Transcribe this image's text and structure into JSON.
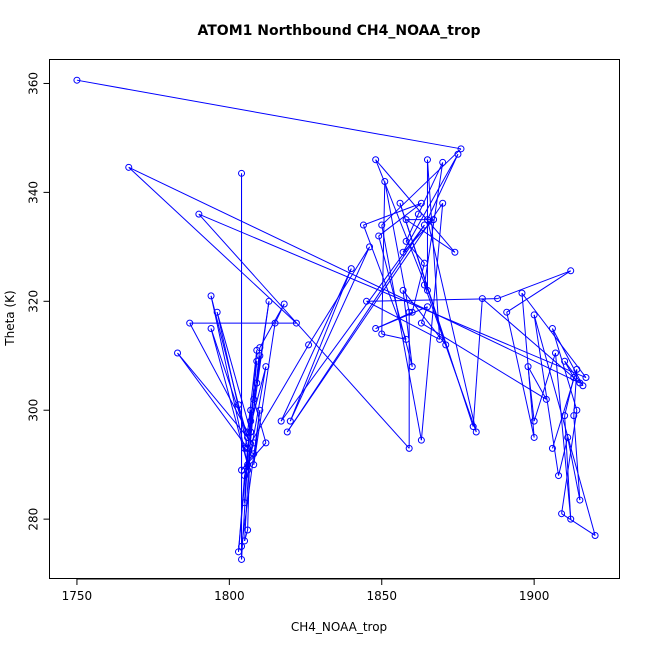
{
  "chart_data": {
    "type": "line",
    "title": "ATOM1 Northbound CH4_NOAA_trop",
    "xlabel": "CH4_NOAA_trop",
    "ylabel": "Theta (K)",
    "xlim": [
      1741,
      1928
    ],
    "ylim": [
      269.1,
      364.4
    ],
    "xticks": [
      1750,
      1800,
      1850,
      1900
    ],
    "yticks": [
      280,
      300,
      320,
      340,
      360
    ],
    "series": [
      {
        "name": "CH4_NOAA_trop",
        "color": "#0000ff",
        "points": [
          [
            1750,
            360.6
          ],
          [
            1876,
            348
          ],
          [
            1850,
            334
          ],
          [
            1863,
            294.5
          ],
          [
            1870,
            338
          ],
          [
            1819,
            296
          ],
          [
            1864,
            334
          ],
          [
            1817,
            298
          ],
          [
            1840,
            326
          ],
          [
            1820,
            298
          ],
          [
            1846,
            330
          ],
          [
            1826,
            312
          ],
          [
            1806,
            293
          ],
          [
            1805,
            283
          ],
          [
            1807,
            300
          ],
          [
            1804,
            272.6
          ],
          [
            1804,
            343.5
          ],
          [
            1804,
            275
          ],
          [
            1810,
            300
          ],
          [
            1808,
            290
          ],
          [
            1815,
            316
          ],
          [
            1818,
            319.5
          ],
          [
            1810,
            311.5
          ],
          [
            1806,
            289
          ],
          [
            1812,
            308
          ],
          [
            1805,
            293
          ],
          [
            1808,
            292
          ],
          [
            1804,
            289
          ],
          [
            1812,
            294
          ],
          [
            1808,
            302
          ],
          [
            1810,
            310
          ],
          [
            1809,
            305
          ],
          [
            1813,
            320
          ],
          [
            1807,
            296
          ],
          [
            1805,
            276
          ],
          [
            1806,
            278
          ],
          [
            1807,
            298
          ],
          [
            1809,
            309
          ],
          [
            1806,
            293
          ],
          [
            1803,
            274
          ],
          [
            1805,
            288
          ],
          [
            1808,
            294
          ],
          [
            1806,
            295
          ],
          [
            1803,
            301
          ],
          [
            1794,
            321
          ],
          [
            1806,
            290
          ],
          [
            1794,
            315
          ],
          [
            1806,
            295
          ],
          [
            1783,
            310.5
          ],
          [
            1806,
            293
          ],
          [
            1796,
            318
          ],
          [
            1807,
            296
          ],
          [
            1809,
            311
          ],
          [
            1806,
            296
          ],
          [
            1787,
            316
          ],
          [
            1822,
            316
          ],
          [
            1767,
            344.6
          ],
          [
            1915,
            305
          ],
          [
            1883,
            320.5
          ],
          [
            1880,
            297
          ],
          [
            1856,
            338
          ],
          [
            1871,
            312
          ],
          [
            1857,
            322
          ],
          [
            1860,
            308
          ],
          [
            1849,
            332
          ],
          [
            1863,
            338
          ],
          [
            1844,
            334
          ],
          [
            1858,
            313
          ],
          [
            1850,
            314
          ],
          [
            1851,
            342
          ],
          [
            1859,
            318
          ],
          [
            1859,
            293
          ],
          [
            1790,
            336
          ],
          [
            1917,
            306
          ],
          [
            1896,
            321.5
          ],
          [
            1900,
            295
          ],
          [
            1891,
            318
          ],
          [
            1912,
            325.6
          ],
          [
            1888,
            320.5
          ],
          [
            1845,
            320
          ],
          [
            1869,
            313
          ],
          [
            1865,
            346
          ],
          [
            1865,
            322
          ],
          [
            1848,
            346
          ],
          [
            1874,
            329
          ],
          [
            1858,
            335
          ],
          [
            1867,
            335
          ],
          [
            1857,
            329
          ],
          [
            1875,
            347
          ],
          [
            1865,
            335
          ],
          [
            1881,
            296
          ],
          [
            1864,
            323
          ],
          [
            1870,
            345.5
          ],
          [
            1862,
            336
          ],
          [
            1858,
            331
          ],
          [
            1864,
            327
          ],
          [
            1860,
            318
          ],
          [
            1848,
            315
          ],
          [
            1865,
            319
          ],
          [
            1863,
            316
          ],
          [
            1904,
            302
          ],
          [
            1898,
            308
          ],
          [
            1900,
            298
          ],
          [
            1907,
            310.5
          ],
          [
            1912,
            280
          ],
          [
            1910,
            299
          ],
          [
            1913,
            306
          ],
          [
            1910,
            309
          ],
          [
            1916,
            304.5
          ],
          [
            1906,
            315
          ],
          [
            1914,
            300
          ],
          [
            1909,
            281
          ],
          [
            1920,
            277
          ],
          [
            1900,
            317.5
          ],
          [
            1908,
            288
          ],
          [
            1911,
            295
          ],
          [
            1915,
            283.5
          ],
          [
            1913,
            299
          ],
          [
            1914,
            307.5
          ],
          [
            1906,
            293
          ]
        ]
      }
    ]
  }
}
